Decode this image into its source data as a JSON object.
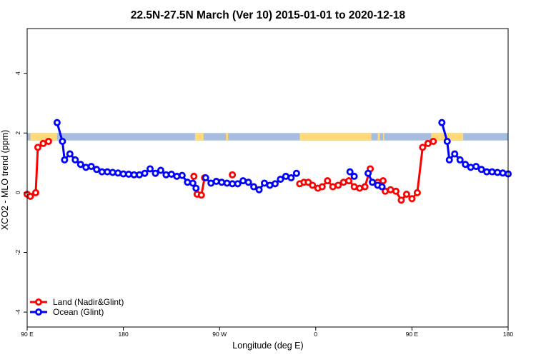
{
  "chart_data": {
    "type": "line",
    "title": "22.5N-27.5N March (Ver 10)   2015-01-01 to 2020-12-18",
    "xlabel": "Longitude (deg E)",
    "ylabel": "XCO2 - MLO trend (ppm)",
    "xlim": [
      90,
      540
    ],
    "ylim": [
      -4.5,
      5.5
    ],
    "x_ticks": [
      {
        "value": 90,
        "label": "90 E"
      },
      {
        "value": 180,
        "label": "180"
      },
      {
        "value": 270,
        "label": "90 W"
      },
      {
        "value": 360,
        "label": "0"
      },
      {
        "value": 450,
        "label": "90 E"
      },
      {
        "value": 540,
        "label": "180"
      }
    ],
    "y_ticks": [
      {
        "value": -4,
        "label": "-4"
      },
      {
        "value": -2,
        "label": "-2"
      },
      {
        "value": 0,
        "label": "0"
      },
      {
        "value": 2,
        "label": "2"
      },
      {
        "value": 4,
        "label": "4"
      }
    ],
    "grid": false,
    "legend_position": "bottom-left",
    "land_band": {
      "y_range": [
        1.75,
        2.0
      ],
      "ocean_color": "#a7bde0",
      "land_color": "#ffd97a",
      "land_segments": [
        [
          93,
          118
        ],
        [
          247,
          255
        ],
        [
          276,
          278
        ],
        [
          345,
          412
        ],
        [
          418,
          420
        ],
        [
          423,
          424
        ],
        [
          468,
          498
        ]
      ]
    },
    "series": [
      {
        "name": "Land (Nadir&Glint)",
        "color": "#ff0000",
        "segments": [
          [
            [
              90,
              -0.05
            ],
            [
              93,
              -0.12
            ],
            [
              98,
              0.0
            ],
            [
              100,
              1.52
            ],
            [
              105,
              1.65
            ],
            [
              110,
              1.72
            ]
          ],
          [
            [
              246,
              0.55
            ]
          ],
          [
            [
              249,
              -0.05
            ],
            [
              253,
              -0.08
            ],
            [
              256,
              0.5
            ]
          ],
          [
            [
              282,
              0.6
            ]
          ],
          [
            [
              345,
              0.3
            ],
            [
              349,
              0.35
            ],
            [
              353,
              0.35
            ],
            [
              357,
              0.25
            ],
            [
              362,
              0.15
            ],
            [
              366,
              0.2
            ],
            [
              371,
              0.4
            ],
            [
              376,
              0.2
            ],
            [
              381,
              0.25
            ],
            [
              386,
              0.35
            ],
            [
              391,
              0.4
            ],
            [
              396,
              0.2
            ],
            [
              401,
              0.15
            ],
            [
              406,
              0.2
            ],
            [
              411,
              0.8
            ]
          ],
          [
            [
              418,
              0.35
            ],
            [
              423,
              0.4
            ]
          ],
          [
            [
              425,
              0.05
            ],
            [
              430,
              0.1
            ],
            [
              435,
              0.05
            ],
            [
              440,
              -0.25
            ],
            [
              445,
              -0.05
            ],
            [
              450,
              -0.2
            ],
            [
              455,
              0.0
            ],
            [
              460,
              1.52
            ],
            [
              465,
              1.65
            ],
            [
              470,
              1.72
            ]
          ]
        ]
      },
      {
        "name": "Ocean (Glint)",
        "color": "#0000ff",
        "segments": [
          [
            [
              118,
              2.35
            ],
            [
              123,
              1.72
            ],
            [
              125,
              1.1
            ],
            [
              130,
              1.3
            ],
            [
              135,
              1.1
            ],
            [
              140,
              0.95
            ],
            [
              145,
              0.85
            ],
            [
              150,
              0.88
            ],
            [
              155,
              0.78
            ],
            [
              160,
              0.7
            ],
            [
              165,
              0.7
            ],
            [
              170,
              0.68
            ],
            [
              175,
              0.66
            ],
            [
              180,
              0.63
            ],
            [
              185,
              0.62
            ],
            [
              190,
              0.6
            ],
            [
              195,
              0.6
            ],
            [
              200,
              0.65
            ],
            [
              205,
              0.8
            ],
            [
              210,
              0.65
            ],
            [
              215,
              0.75
            ],
            [
              220,
              0.6
            ],
            [
              225,
              0.62
            ],
            [
              230,
              0.55
            ],
            [
              235,
              0.58
            ],
            [
              240,
              0.35
            ],
            [
              245,
              0.32
            ],
            [
              248,
              0.15
            ]
          ],
          [
            [
              257,
              0.5
            ],
            [
              262,
              0.32
            ],
            [
              267,
              0.38
            ],
            [
              272,
              0.35
            ],
            [
              277,
              0.32
            ],
            [
              282,
              0.3
            ],
            [
              287,
              0.3
            ],
            [
              292,
              0.4
            ],
            [
              297,
              0.35
            ],
            [
              302,
              0.2
            ],
            [
              307,
              0.1
            ],
            [
              312,
              0.32
            ],
            [
              317,
              0.25
            ],
            [
              322,
              0.3
            ],
            [
              327,
              0.45
            ],
            [
              332,
              0.55
            ],
            [
              337,
              0.5
            ],
            [
              342,
              0.65
            ]
          ],
          [
            [
              392,
              0.7
            ],
            [
              396,
              0.55
            ]
          ],
          [
            [
              409,
              0.65
            ],
            [
              413,
              0.35
            ],
            [
              418,
              0.25
            ],
            [
              422,
              0.2
            ]
          ],
          [
            [
              478,
              2.35
            ],
            [
              483,
              1.72
            ],
            [
              485,
              1.1
            ],
            [
              490,
              1.3
            ],
            [
              495,
              1.1
            ],
            [
              500,
              0.95
            ],
            [
              505,
              0.85
            ],
            [
              510,
              0.88
            ],
            [
              515,
              0.78
            ],
            [
              520,
              0.7
            ],
            [
              525,
              0.7
            ],
            [
              530,
              0.68
            ],
            [
              535,
              0.66
            ],
            [
              540,
              0.63
            ]
          ]
        ]
      }
    ]
  }
}
